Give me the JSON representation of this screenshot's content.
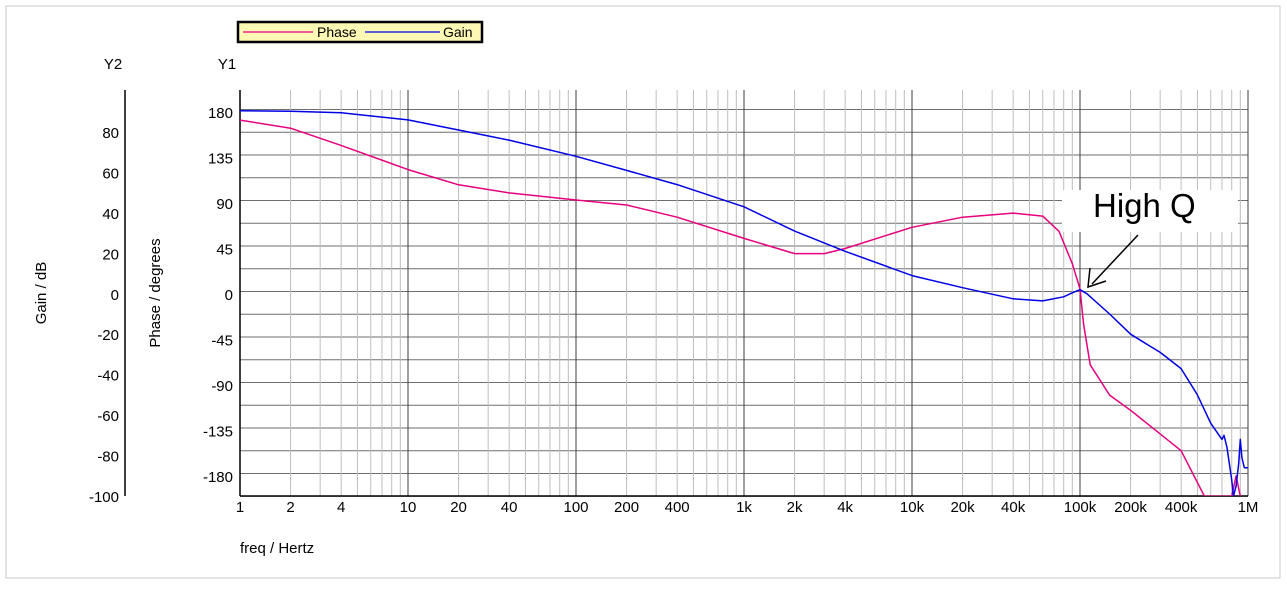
{
  "chart_data": {
    "type": "line",
    "legend": {
      "placement": "top-left",
      "entries": [
        {
          "name": "Phase",
          "color": "#e6007e"
        },
        {
          "name": "Gain",
          "color": "#0000e6"
        }
      ]
    },
    "y1": {
      "header": "Y1",
      "label": "Phase / degrees",
      "range": [
        -200,
        190
      ],
      "ticks": [
        "180",
        "135",
        "90",
        "45",
        "0",
        "-45",
        "-90",
        "-135",
        "-180"
      ]
    },
    "y2": {
      "header": "Y2",
      "label": "Gain / dB",
      "range": [
        -100,
        90
      ],
      "ticks": [
        "80",
        "60",
        "40",
        "20",
        "0",
        "-20",
        "-40",
        "-60",
        "-80",
        "-100"
      ]
    },
    "x": {
      "label": "freq / Hertz",
      "scale": "log",
      "range": [
        1,
        1000000
      ],
      "ticks": [
        "1",
        "2",
        "4",
        "10",
        "20",
        "40",
        "100",
        "200",
        "400",
        "1k",
        "2k",
        "4k",
        "10k",
        "20k",
        "40k",
        "100k",
        "200k",
        "400k",
        "1M"
      ]
    },
    "grid": true,
    "annotation": {
      "text": "High Q",
      "points_to": {
        "freq": 100000,
        "gain_db": 2
      }
    },
    "series": [
      {
        "name": "Phase",
        "axis": "y1",
        "color": "#e6007e",
        "points": [
          [
            1,
            172
          ],
          [
            2,
            164
          ],
          [
            4,
            147
          ],
          [
            10,
            123
          ],
          [
            20,
            108
          ],
          [
            40,
            100
          ],
          [
            100,
            93
          ],
          [
            200,
            88
          ],
          [
            400,
            76
          ],
          [
            1000,
            55
          ],
          [
            2000,
            40
          ],
          [
            3000,
            40
          ],
          [
            4000,
            45
          ],
          [
            10000,
            66
          ],
          [
            20000,
            76
          ],
          [
            40000,
            80
          ],
          [
            60000,
            77
          ],
          [
            75000,
            62
          ],
          [
            90000,
            30
          ],
          [
            100000,
            5
          ],
          [
            105000,
            -30
          ],
          [
            115000,
            -70
          ],
          [
            150000,
            -100
          ],
          [
            200000,
            -115
          ],
          [
            400000,
            -155
          ],
          [
            550000,
            -200
          ],
          [
            800000,
            -200
          ],
          [
            850000,
            -180
          ],
          [
            900000,
            -200
          ]
        ]
      },
      {
        "name": "Gain",
        "axis": "y2",
        "color": "#0000e6",
        "points": [
          [
            1,
            90.5
          ],
          [
            2,
            90.3
          ],
          [
            4,
            89.5
          ],
          [
            10,
            86
          ],
          [
            20,
            81
          ],
          [
            40,
            76
          ],
          [
            100,
            68
          ],
          [
            200,
            61
          ],
          [
            400,
            54
          ],
          [
            1000,
            43
          ],
          [
            2000,
            31
          ],
          [
            4000,
            21
          ],
          [
            10000,
            9
          ],
          [
            20000,
            3
          ],
          [
            40000,
            -2.5
          ],
          [
            60000,
            -3.5
          ],
          [
            80000,
            -1.5
          ],
          [
            90000,
            0.5
          ],
          [
            100000,
            2
          ],
          [
            110000,
            0
          ],
          [
            150000,
            -10
          ],
          [
            200000,
            -20
          ],
          [
            300000,
            -29
          ],
          [
            400000,
            -37
          ],
          [
            500000,
            -50
          ],
          [
            600000,
            -64
          ],
          [
            700000,
            -72
          ],
          [
            720000,
            -70
          ],
          [
            750000,
            -76
          ],
          [
            800000,
            -92
          ],
          [
            820000,
            -100
          ],
          [
            850000,
            -95
          ],
          [
            880000,
            -84
          ],
          [
            900000,
            -72
          ],
          [
            920000,
            -81
          ],
          [
            950000,
            -86
          ],
          [
            1000000,
            -86
          ]
        ]
      }
    ]
  }
}
